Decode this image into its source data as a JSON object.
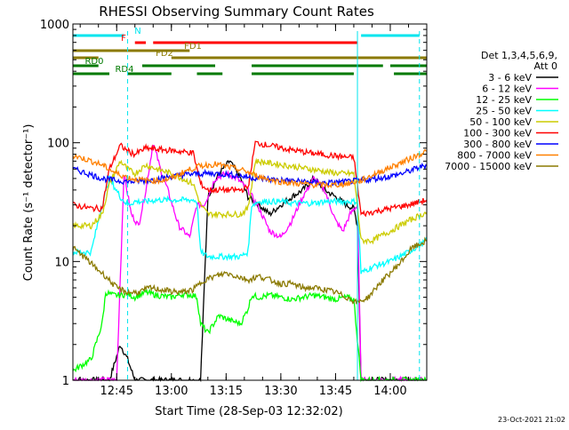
{
  "chart_data": {
    "type": "line",
    "title": "RHESSI Observing Summary Count Rates",
    "xlabel": "Start Time (28-Sep-03 12:32:02)",
    "ylabel": "Count Rate (s⁻¹ detector⁻¹)",
    "y_scale": "log",
    "ylim": [
      1,
      1000
    ],
    "xlim": [
      "12:33",
      "14:10"
    ],
    "x_ticks": [
      "12:45",
      "13:00",
      "13:15",
      "13:30",
      "13:45",
      "14:00"
    ],
    "y_ticks": [
      "1",
      "10",
      "100",
      "1000"
    ],
    "legend": {
      "position": "right",
      "title_lines": [
        "Det 1,3,4,5,6,9,",
        "Att 0"
      ]
    },
    "timestamp": "23-Oct-2021 21:02",
    "dashed_markers": [
      "12:48",
      "13:51",
      "14:08"
    ],
    "flags": [
      {
        "label": "N",
        "color": "#00e5ee",
        "segments": [
          [
            "12:33",
            "12:47"
          ],
          [
            "13:52",
            "14:08"
          ]
        ]
      },
      {
        "label": "F",
        "color": "#ff0000",
        "segments": [
          [
            "12:50",
            "12:53"
          ],
          [
            "12:55",
            "13:51"
          ]
        ]
      },
      {
        "label": "FD1",
        "color": "#8b7a00",
        "segments": [
          [
            "12:33",
            "13:05"
          ]
        ]
      },
      {
        "label": "FD2",
        "color": "#8b7a00",
        "segments": [
          [
            "12:33",
            "12:40"
          ],
          [
            "13:00",
            "14:10"
          ]
        ]
      },
      {
        "label": "RD0",
        "color": "#007a00",
        "segments": [
          [
            "12:33",
            "12:40"
          ],
          [
            "12:52",
            "13:12"
          ],
          [
            "13:22",
            "13:58"
          ],
          [
            "14:00",
            "14:10"
          ]
        ]
      },
      {
        "label": "RD4",
        "color": "#007a00",
        "segments": [
          [
            "12:33",
            "12:43"
          ],
          [
            "12:48",
            "13:00"
          ],
          [
            "13:07",
            "13:14"
          ],
          [
            "13:22",
            "13:50"
          ],
          [
            "14:01",
            "14:10"
          ]
        ]
      }
    ],
    "series": [
      {
        "name": "3 - 6 keV",
        "color": "#000000",
        "x": [
          "12:33",
          "12:40",
          "12:43",
          "12:46",
          "12:48",
          "12:50",
          "12:53",
          "12:56",
          "13:00",
          "13:03",
          "13:06",
          "13:08",
          "13:10",
          "13:13",
          "13:16",
          "13:19",
          "13:21",
          "13:24",
          "13:27",
          "13:30",
          "13:33",
          "13:36",
          "13:39",
          "13:42",
          "13:45",
          "13:48",
          "13:50",
          "13:51",
          "13:52",
          "13:55",
          "14:00",
          "14:05",
          "14:10"
        ],
        "y": [
          1.0,
          1.0,
          1.0,
          2.0,
          1.5,
          1.0,
          1.0,
          1.0,
          1.0,
          1.0,
          1.0,
          1.0,
          35,
          55,
          70,
          50,
          35,
          30,
          25,
          30,
          35,
          40,
          50,
          40,
          35,
          30,
          28,
          20,
          1.0,
          1.0,
          1.0,
          1.0,
          1.0
        ]
      },
      {
        "name": "6 - 12 keV",
        "color": "#ff00ff",
        "x": [
          "12:33",
          "12:40",
          "12:43",
          "12:45",
          "12:47",
          "12:49",
          "12:51",
          "12:53",
          "12:55",
          "12:57",
          "12:59",
          "13:02",
          "13:05",
          "13:07",
          "13:09",
          "13:12",
          "13:15",
          "13:18",
          "13:21",
          "13:24",
          "13:27",
          "13:30",
          "13:33",
          "13:36",
          "13:39",
          "13:42",
          "13:45",
          "13:47",
          "13:49",
          "13:51",
          "13:52",
          "13:55",
          "14:00",
          "14:05",
          "14:10"
        ],
        "y": [
          1.0,
          1.0,
          1.0,
          1.0,
          55,
          25,
          20,
          40,
          100,
          60,
          40,
          20,
          16,
          30,
          30,
          50,
          55,
          50,
          40,
          28,
          18,
          16,
          22,
          35,
          50,
          40,
          22,
          18,
          25,
          30,
          1.0,
          1.0,
          1.0,
          1.0,
          1.0
        ]
      },
      {
        "name": "12 - 25 keV",
        "color": "#00ff00",
        "x": [
          "12:33",
          "12:38",
          "12:41",
          "12:42",
          "12:44",
          "12:46",
          "12:48",
          "12:50",
          "12:53",
          "12:56",
          "13:00",
          "13:03",
          "13:06",
          "13:07",
          "13:08",
          "13:10",
          "13:13",
          "13:16",
          "13:19",
          "13:21",
          "13:22",
          "13:24",
          "13:27",
          "13:30",
          "13:33",
          "13:36",
          "13:39",
          "13:42",
          "13:45",
          "13:48",
          "13:50",
          "13:52",
          "13:54",
          "13:58",
          "14:02",
          "14:06",
          "14:10"
        ],
        "y": [
          1.2,
          1.5,
          3.0,
          5.5,
          5.2,
          5.2,
          5.3,
          5.0,
          5.5,
          5.2,
          5.0,
          5.3,
          5.2,
          5.0,
          3.0,
          2.5,
          3.5,
          3.2,
          3.0,
          4.0,
          5.2,
          5.0,
          5.2,
          5.0,
          4.8,
          5.0,
          5.2,
          5.0,
          4.8,
          5.0,
          4.8,
          1.0,
          1.0,
          1.0,
          1.0,
          1.0,
          1.0
        ]
      },
      {
        "name": "25 - 50 keV",
        "color": "#00ffff",
        "x": [
          "12:33",
          "12:38",
          "12:41",
          "12:43",
          "12:46",
          "12:48",
          "12:50",
          "12:53",
          "12:56",
          "13:00",
          "13:03",
          "13:06",
          "13:07",
          "13:08",
          "13:10",
          "13:13",
          "13:16",
          "13:19",
          "13:21",
          "13:22",
          "13:24",
          "13:27",
          "13:30",
          "13:33",
          "13:36",
          "13:39",
          "13:42",
          "13:45",
          "13:48",
          "13:51",
          "13:52",
          "13:55",
          "14:00",
          "14:05",
          "14:10"
        ],
        "y": [
          12,
          12,
          30,
          50,
          35,
          30,
          32,
          32,
          33,
          33,
          33,
          33,
          32,
          12,
          11,
          11,
          11,
          11,
          12,
          30,
          32,
          32,
          32,
          31,
          31,
          31,
          32,
          32,
          32,
          32,
          8,
          9,
          10,
          12,
          15
        ]
      },
      {
        "name": "50 - 100 keV",
        "color": "#cccc00",
        "x": [
          "12:33",
          "12:38",
          "12:41",
          "12:43",
          "12:46",
          "12:48",
          "12:50",
          "12:53",
          "12:56",
          "13:00",
          "13:03",
          "13:06",
          "13:08",
          "13:10",
          "13:13",
          "13:16",
          "13:19",
          "13:21",
          "13:23",
          "13:26",
          "13:29",
          "13:32",
          "13:35",
          "13:38",
          "13:41",
          "13:44",
          "13:47",
          "13:50",
          "13:52",
          "13:55",
          "14:00",
          "14:05",
          "14:10"
        ],
        "y": [
          20,
          20,
          25,
          45,
          70,
          60,
          55,
          65,
          60,
          55,
          50,
          45,
          30,
          25,
          25,
          25,
          25,
          28,
          70,
          68,
          66,
          64,
          62,
          60,
          58,
          56,
          55,
          55,
          15,
          15,
          18,
          22,
          26
        ]
      },
      {
        "name": "100 - 300 keV",
        "color": "#ff0000",
        "x": [
          "12:33",
          "12:38",
          "12:41",
          "12:43",
          "12:46",
          "12:48",
          "12:50",
          "12:53",
          "12:56",
          "13:00",
          "13:03",
          "13:06",
          "13:08",
          "13:10",
          "13:13",
          "13:16",
          "13:19",
          "13:21",
          "13:23",
          "13:26",
          "13:29",
          "13:32",
          "13:35",
          "13:38",
          "13:41",
          "13:44",
          "13:47",
          "13:50",
          "13:52",
          "13:55",
          "14:00",
          "14:05",
          "14:10"
        ],
        "y": [
          30,
          28,
          28,
          60,
          95,
          85,
          80,
          90,
          88,
          86,
          84,
          82,
          45,
          40,
          40,
          40,
          40,
          42,
          100,
          96,
          92,
          88,
          85,
          82,
          80,
          78,
          76,
          75,
          25,
          26,
          28,
          30,
          33
        ]
      },
      {
        "name": "300 - 800 keV",
        "color": "#0000ff",
        "x": [
          "12:33",
          "12:37",
          "12:41",
          "12:45",
          "12:49",
          "12:53",
          "12:57",
          "13:00",
          "13:04",
          "13:08",
          "13:12",
          "13:16",
          "13:20",
          "13:24",
          "13:28",
          "13:32",
          "13:36",
          "13:40",
          "13:44",
          "13:48",
          "13:52",
          "13:56",
          "14:00",
          "14:04",
          "14:08",
          "14:10"
        ],
        "y": [
          60,
          55,
          50,
          48,
          47,
          48,
          50,
          52,
          54,
          55,
          55,
          54,
          52,
          50,
          49,
          48,
          47,
          46,
          46,
          47,
          48,
          50,
          52,
          56,
          62,
          65
        ]
      },
      {
        "name": "800 - 7000 keV",
        "color": "#ff8000",
        "x": [
          "12:33",
          "12:37",
          "12:41",
          "12:45",
          "12:49",
          "12:53",
          "12:57",
          "13:00",
          "13:04",
          "13:08",
          "13:12",
          "13:16",
          "13:20",
          "13:24",
          "13:28",
          "13:32",
          "13:36",
          "13:40",
          "13:44",
          "13:48",
          "13:52",
          "13:56",
          "14:00",
          "14:04",
          "14:08",
          "14:10"
        ],
        "y": [
          78,
          72,
          65,
          55,
          50,
          48,
          48,
          50,
          58,
          64,
          66,
          62,
          58,
          52,
          48,
          46,
          45,
          44,
          44,
          45,
          48,
          55,
          62,
          70,
          80,
          85
        ]
      },
      {
        "name": "7000 - 15000 keV",
        "color": "#8b7a00",
        "x": [
          "12:33",
          "12:36",
          "12:39",
          "12:42",
          "12:45",
          "12:48",
          "12:51",
          "12:54",
          "12:57",
          "13:00",
          "13:03",
          "13:06",
          "13:09",
          "13:12",
          "13:15",
          "13:18",
          "13:21",
          "13:24",
          "13:27",
          "13:30",
          "13:33",
          "13:36",
          "13:39",
          "13:42",
          "13:45",
          "13:48",
          "13:51",
          "13:54",
          "13:57",
          "14:00",
          "14:03",
          "14:06",
          "14:10"
        ],
        "y": [
          13,
          11,
          9,
          7.5,
          6,
          5.5,
          5.5,
          6,
          5.8,
          5.6,
          5.5,
          5.8,
          7,
          7.5,
          8,
          7.5,
          7,
          7.5,
          7,
          6.5,
          6.5,
          6,
          6,
          5.8,
          5.5,
          5,
          4.5,
          5,
          6.5,
          8,
          10,
          13,
          15
        ]
      }
    ]
  }
}
